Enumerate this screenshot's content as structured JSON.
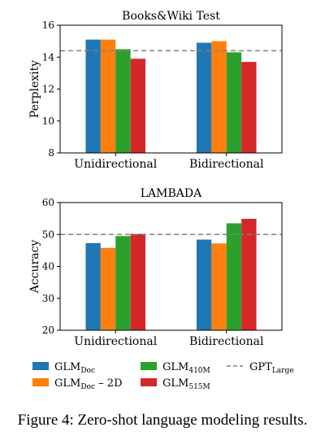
{
  "chart_data": [
    {
      "type": "bar",
      "title": "Books&Wiki Test",
      "xlabel": "",
      "ylabel": "Perplexity",
      "ylim": [
        8,
        16
      ],
      "yticks": [
        "8",
        "10",
        "12",
        "14",
        "16"
      ],
      "categories": [
        "Unidirectional",
        "Bidirectional"
      ],
      "series": [
        {
          "key": "doc",
          "values": [
            15.1,
            14.9
          ]
        },
        {
          "key": "doc2d",
          "values": [
            15.1,
            15.0
          ]
        },
        {
          "key": "m410",
          "values": [
            14.5,
            14.3
          ]
        },
        {
          "key": "m515",
          "values": [
            13.9,
            13.7
          ]
        }
      ],
      "reference": {
        "key": "gpt",
        "value": 14.4
      }
    },
    {
      "type": "bar",
      "title": "LAMBADA",
      "xlabel": "",
      "ylabel": "Accuracy",
      "ylim": [
        20,
        60
      ],
      "yticks": [
        "20",
        "30",
        "40",
        "50",
        "60"
      ],
      "categories": [
        "Unidirectional",
        "Bidirectional"
      ],
      "series": [
        {
          "key": "doc",
          "values": [
            47.3,
            48.4
          ]
        },
        {
          "key": "doc2d",
          "values": [
            45.8,
            47.2
          ]
        },
        {
          "key": "m410",
          "values": [
            49.5,
            53.5
          ]
        },
        {
          "key": "m515",
          "values": [
            50.2,
            54.9
          ]
        }
      ],
      "reference": {
        "key": "gpt",
        "value": 50.0
      }
    }
  ],
  "legend": {
    "placement": "bottom",
    "entries": [
      {
        "key": "doc",
        "base": "GLM",
        "sub": "Doc",
        "suffix": "",
        "color": "#1f77b4",
        "kind": "patch"
      },
      {
        "key": "doc2d",
        "base": "GLM",
        "sub": "Doc",
        "suffix": " – 2D",
        "color": "#ff7f0e",
        "kind": "patch"
      },
      {
        "key": "m410",
        "base": "GLM",
        "sub": "410M",
        "suffix": "",
        "color": "#2ca02c",
        "kind": "patch"
      },
      {
        "key": "m515",
        "base": "GLM",
        "sub": "515M",
        "suffix": "",
        "color": "#d62728",
        "kind": "patch"
      },
      {
        "key": "gpt",
        "base": "GPT",
        "sub": "Large",
        "suffix": "",
        "color": "#808080",
        "kind": "dashed"
      }
    ]
  },
  "caption": "Figure 4: Zero-shot language modeling results."
}
